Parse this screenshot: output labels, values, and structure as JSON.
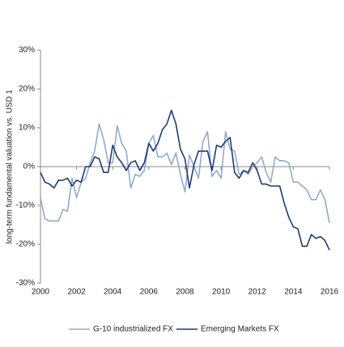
{
  "chart_data": {
    "type": "line",
    "y_label": "long-term fundamental valuation vs. USD 1",
    "x": [
      2000,
      2000.25,
      2000.5,
      2000.75,
      2001,
      2001.25,
      2001.5,
      2001.75,
      2002,
      2002.25,
      2002.5,
      2002.75,
      2003,
      2003.25,
      2003.5,
      2003.75,
      2004,
      2004.25,
      2004.5,
      2004.75,
      2005,
      2005.25,
      2005.5,
      2005.75,
      2006,
      2006.25,
      2006.5,
      2006.75,
      2007,
      2007.25,
      2007.5,
      2007.75,
      2008,
      2008.25,
      2008.5,
      2008.75,
      2009,
      2009.25,
      2009.5,
      2009.75,
      2010,
      2010.25,
      2010.5,
      2010.75,
      2011,
      2011.25,
      2011.5,
      2011.75,
      2012,
      2012.25,
      2012.5,
      2012.75,
      2013,
      2013.25,
      2013.5,
      2013.75,
      2014,
      2014.25,
      2014.5,
      2014.75,
      2015,
      2015.25,
      2015.5,
      2015.75,
      2016
    ],
    "series": [
      {
        "name": "G-10 industrialized FX",
        "color": "#92aacb",
        "values": [
          -8,
          -13.5,
          -14,
          -14,
          -14,
          -11,
          -11.5,
          -3,
          -8,
          -4,
          -3,
          1,
          4,
          11,
          7,
          1,
          1,
          10.5,
          6,
          4,
          -5.5,
          -2,
          -2.5,
          -1,
          6,
          8,
          2.5,
          2.5,
          3.5,
          0.5,
          3.5,
          -2,
          -6.5,
          3,
          0,
          -3,
          6.5,
          9,
          -2.5,
          -1,
          -3,
          9,
          4.5,
          4,
          -2,
          -1,
          -2,
          0,
          1,
          2.5,
          -1.5,
          -4,
          2.5,
          1.5,
          1.5,
          1,
          -4,
          -4,
          -5,
          -6,
          -8.5,
          -8.5,
          -6,
          -8.5,
          -14.5
        ]
      },
      {
        "name": "Emerging Markets FX",
        "color": "#1f3a78",
        "values": [
          -1.5,
          -4,
          -4.5,
          -5.5,
          -3.5,
          -3.5,
          -3,
          -5,
          -3.5,
          -4,
          0,
          0,
          2.5,
          2,
          -1.5,
          -1.5,
          5.5,
          2.5,
          1,
          -1,
          1,
          1.5,
          -1,
          1,
          6,
          4,
          6,
          9.5,
          11,
          14.5,
          11,
          4.5,
          2,
          -5.5,
          0.5,
          4,
          4,
          4,
          -1,
          5.5,
          5,
          6.5,
          7.5,
          -1.5,
          -3,
          -1,
          -1.5,
          1,
          -1,
          -4.5,
          -4.5,
          -5,
          -5,
          -5,
          -9.5,
          -13,
          -15.5,
          -16,
          -20.5,
          -20.5,
          -17.5,
          -18.5,
          -18,
          -19,
          -21.5
        ]
      }
    ],
    "xlim": [
      2000,
      2016
    ],
    "xticks": [
      2000,
      2002,
      2004,
      2006,
      2008,
      2010,
      2012,
      2014,
      2016
    ],
    "ylim": [
      -30,
      30
    ],
    "yticks": [
      {
        "value": -30,
        "label": "-30%"
      },
      {
        "value": -20,
        "label": "-20%"
      },
      {
        "value": -10,
        "label": "-10%"
      },
      {
        "value": 0,
        "label": "0%"
      },
      {
        "value": 10,
        "label": "10%"
      },
      {
        "value": 20,
        "label": "20%"
      },
      {
        "value": 30,
        "label": "30%"
      }
    ]
  }
}
